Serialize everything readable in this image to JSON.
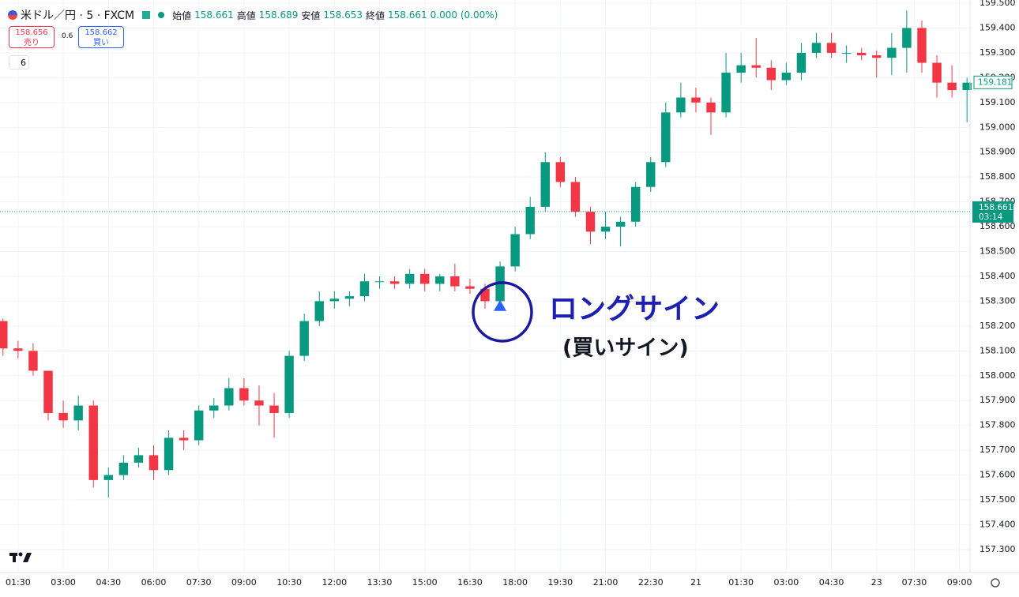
{
  "chart_data": {
    "type": "candlestick",
    "header": {
      "symbol": "米ドル／円 · 5 · FXCM",
      "open_label": "始値",
      "open": "158.661",
      "high_label": "高値",
      "high": "158.689",
      "low_label": "安値",
      "low": "158.653",
      "close_label": "終値",
      "close": "158.661",
      "change": "0.000 (0.00%)"
    },
    "trade": {
      "sell_price": "158.656",
      "sell_label": "売り",
      "spread": "0.6",
      "buy_price": "158.662",
      "buy_label": "買い",
      "indicator_count": "6"
    },
    "x": [
      -1,
      0,
      1,
      2,
      3,
      4,
      5,
      6,
      7,
      8,
      9,
      10,
      11,
      12,
      13,
      14,
      15,
      16,
      17,
      18,
      19,
      20,
      21,
      22,
      23,
      24,
      25,
      26,
      27,
      28,
      29,
      30,
      31,
      32,
      33,
      34,
      35,
      36,
      37,
      38,
      39,
      40,
      41,
      42,
      43,
      44,
      45,
      46,
      47,
      48,
      49,
      50,
      51,
      52,
      53,
      54,
      55,
      56,
      57,
      58,
      59,
      60,
      61,
      62,
      63
    ],
    "open": [
      158.22,
      158.11,
      158.1,
      158.02,
      157.85,
      157.82,
      157.88,
      157.58,
      157.6,
      157.65,
      157.68,
      157.62,
      157.75,
      157.74,
      157.86,
      157.88,
      157.95,
      157.9,
      157.88,
      157.85,
      158.08,
      158.22,
      158.3,
      158.31,
      158.32,
      158.38,
      158.38,
      158.37,
      158.41,
      158.37,
      158.4,
      158.36,
      158.35,
      158.3,
      158.44,
      158.57,
      158.68,
      158.86,
      158.78,
      158.66,
      158.58,
      158.6,
      158.62,
      158.76,
      158.86,
      159.06,
      159.12,
      159.1,
      159.06,
      159.22,
      159.25,
      159.24,
      159.19,
      159.22,
      159.3,
      159.34,
      159.3,
      159.3,
      159.29,
      159.28,
      159.32,
      159.4,
      159.26,
      159.18,
      159.15
    ],
    "high": [
      158.23,
      158.14,
      158.13,
      158.02,
      157.9,
      157.92,
      157.9,
      157.63,
      157.68,
      157.71,
      157.72,
      157.78,
      157.78,
      157.88,
      157.91,
      157.99,
      157.99,
      157.96,
      157.93,
      158.1,
      158.25,
      158.34,
      158.34,
      158.34,
      158.41,
      158.4,
      158.4,
      158.43,
      158.43,
      158.41,
      158.45,
      158.39,
      158.37,
      158.46,
      158.6,
      158.72,
      158.9,
      158.88,
      158.8,
      158.68,
      158.66,
      158.64,
      158.78,
      158.88,
      159.1,
      159.18,
      159.16,
      159.12,
      159.3,
      159.3,
      159.36,
      159.27,
      159.26,
      159.34,
      159.38,
      159.38,
      159.33,
      159.32,
      159.31,
      159.38,
      159.47,
      159.43,
      159.29,
      159.25,
      159.2
    ],
    "low": [
      158.08,
      158.07,
      158.0,
      157.82,
      157.79,
      157.78,
      157.55,
      157.51,
      157.58,
      157.63,
      157.58,
      157.6,
      157.7,
      157.72,
      157.83,
      157.86,
      157.88,
      157.8,
      157.75,
      157.83,
      158.06,
      158.2,
      158.27,
      158.28,
      158.3,
      158.35,
      158.35,
      158.35,
      158.34,
      158.34,
      158.34,
      158.33,
      158.27,
      158.27,
      158.42,
      158.55,
      158.66,
      158.76,
      158.64,
      158.53,
      158.55,
      158.52,
      158.6,
      158.74,
      158.84,
      159.04,
      159.06,
      158.97,
      159.04,
      159.18,
      159.2,
      159.15,
      159.17,
      159.19,
      159.28,
      159.28,
      159.26,
      159.27,
      159.2,
      159.21,
      159.22,
      159.22,
      159.12,
      159.12,
      159.02
    ],
    "close": [
      158.11,
      158.1,
      158.02,
      157.85,
      157.82,
      157.88,
      157.58,
      157.6,
      157.65,
      157.68,
      157.62,
      157.75,
      157.74,
      157.86,
      157.88,
      157.95,
      157.9,
      157.88,
      157.85,
      158.08,
      158.22,
      158.3,
      158.31,
      158.32,
      158.38,
      158.38,
      158.37,
      158.41,
      158.37,
      158.4,
      158.36,
      158.35,
      158.3,
      158.44,
      158.57,
      158.68,
      158.86,
      158.78,
      158.66,
      158.58,
      158.6,
      158.62,
      158.76,
      158.86,
      159.06,
      159.12,
      159.1,
      159.06,
      159.22,
      159.25,
      159.24,
      159.19,
      159.22,
      159.3,
      159.34,
      159.3,
      159.3,
      159.29,
      159.28,
      159.32,
      159.4,
      159.26,
      159.18,
      159.15,
      159.18
    ],
    "up_color": "#089981",
    "down_color": "#f23645",
    "xlim": [
      -1.2,
      63.2
    ],
    "xticks": [
      {
        "value": 0,
        "label": "01:30"
      },
      {
        "value": 3,
        "label": "03:00"
      },
      {
        "value": 6,
        "label": "04:30"
      },
      {
        "value": 9,
        "label": "06:00"
      },
      {
        "value": 12,
        "label": "07:30"
      },
      {
        "value": 15,
        "label": "09:00"
      },
      {
        "value": 18,
        "label": "10:30"
      },
      {
        "value": 21,
        "label": "12:00"
      },
      {
        "value": 24,
        "label": "13:30"
      },
      {
        "value": 27,
        "label": "15:00"
      },
      {
        "value": 30,
        "label": "16:30"
      },
      {
        "value": 33,
        "label": "18:00"
      },
      {
        "value": 36,
        "label": "19:30"
      },
      {
        "value": 39,
        "label": "21:00"
      },
      {
        "value": 42,
        "label": "22:30"
      },
      {
        "value": 45,
        "label": "21"
      },
      {
        "value": 48,
        "label": "01:30"
      },
      {
        "value": 51,
        "label": "03:00"
      },
      {
        "value": 54,
        "label": "04:30"
      },
      {
        "value": 57,
        "label": "23"
      },
      {
        "value": 59.5,
        "label": "07:30"
      },
      {
        "value": 62.5,
        "label": "09:00"
      }
    ],
    "ylim": [
      157.2871,
      159.5127
    ],
    "yticks": [
      {
        "value": 157.3,
        "label": "157.300"
      },
      {
        "value": 157.4,
        "label": "157.400"
      },
      {
        "value": 157.5,
        "label": "157.500"
      },
      {
        "value": 157.6,
        "label": "157.600"
      },
      {
        "value": 157.7,
        "label": "157.700"
      },
      {
        "value": 157.8,
        "label": "157.800"
      },
      {
        "value": 157.9,
        "label": "157.900"
      },
      {
        "value": 158.0,
        "label": "158.000"
      },
      {
        "value": 158.1,
        "label": "158.100"
      },
      {
        "value": 158.2,
        "label": "158.200"
      },
      {
        "value": 158.3,
        "label": "158.300"
      },
      {
        "value": 158.4,
        "label": "158.400"
      },
      {
        "value": 158.5,
        "label": "158.500"
      },
      {
        "value": 158.6,
        "label": "158.600"
      },
      {
        "value": 158.7,
        "label": "158.700"
      },
      {
        "value": 158.8,
        "label": "158.800"
      },
      {
        "value": 158.9,
        "label": "158.900"
      },
      {
        "value": 159.0,
        "label": "159.000"
      },
      {
        "value": 159.1,
        "label": "159.100"
      },
      {
        "value": 159.2,
        "label": "159.200"
      },
      {
        "value": 159.3,
        "label": "159.300"
      },
      {
        "value": 159.4,
        "label": "159.400"
      },
      {
        "value": 159.5,
        "label": "159.500"
      }
    ],
    "grid": true,
    "last_price": {
      "value": 159.181,
      "label": "159.181"
    },
    "current_price": {
      "value": 158.661,
      "label": "158.661",
      "countdown": "03:14"
    },
    "signal": {
      "x": 32,
      "value": 158.28,
      "text": "ロングサイン",
      "subtext": "(買いサイン)"
    }
  }
}
